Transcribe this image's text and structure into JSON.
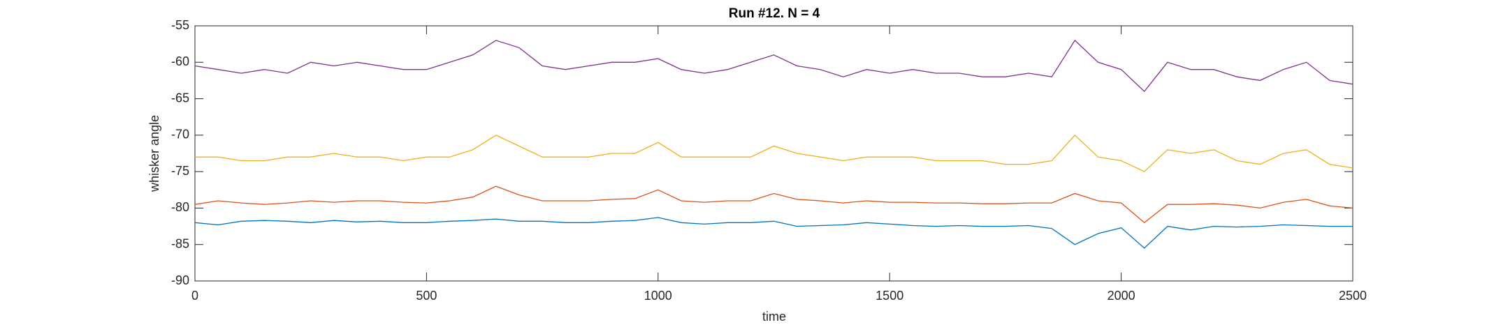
{
  "chart_data": {
    "type": "line",
    "title": "Run #12. N = 4",
    "x_label": "time",
    "y_label": "whisker angle",
    "x": [
      0,
      50,
      100,
      150,
      200,
      250,
      300,
      350,
      400,
      450,
      500,
      550,
      600,
      650,
      700,
      750,
      800,
      850,
      900,
      950,
      1000,
      1050,
      1100,
      1150,
      1200,
      1250,
      1300,
      1350,
      1400,
      1450,
      1500,
      1550,
      1600,
      1650,
      1700,
      1750,
      1800,
      1850,
      1900,
      1950,
      2000,
      2050,
      2100,
      2150,
      2200,
      2250,
      2300,
      2350,
      2400,
      2450,
      2500
    ],
    "series": [
      {
        "color": "#0072BD",
        "values": [
          -82,
          -82.3,
          -81.8,
          -81.7,
          -81.8,
          -82,
          -81.7,
          -81.9,
          -81.8,
          -82,
          -82,
          -81.8,
          -81.7,
          -81.5,
          -81.8,
          -81.8,
          -82,
          -82,
          -81.8,
          -81.7,
          -81.3,
          -82,
          -82.2,
          -82,
          -82,
          -81.8,
          -82.5,
          -82.4,
          -82.3,
          -82,
          -82.2,
          -82.4,
          -82.5,
          -82.4,
          -82.5,
          -82.5,
          -82.4,
          -82.8,
          -85,
          -83.5,
          -82.7,
          -85.5,
          -82.5,
          -83,
          -82.5,
          -82.6,
          -82.5,
          -82.3,
          -82.4,
          -82.5,
          -82.5
        ]
      },
      {
        "color": "#D95319",
        "values": [
          -79.5,
          -79,
          -79.3,
          -79.5,
          -79.3,
          -79,
          -79.2,
          -79,
          -79,
          -79.2,
          -79.3,
          -79,
          -78.5,
          -77,
          -78.2,
          -79,
          -79,
          -79,
          -78.8,
          -78.7,
          -77.5,
          -79,
          -79.2,
          -79,
          -79,
          -78,
          -78.8,
          -79,
          -79.3,
          -79,
          -79.2,
          -79.2,
          -79.3,
          -79.3,
          -79.4,
          -79.4,
          -79.3,
          -79.3,
          -78,
          -79,
          -79.3,
          -82,
          -79.5,
          -79.5,
          -79.4,
          -79.6,
          -80,
          -79.2,
          -78.8,
          -79.7,
          -80
        ]
      },
      {
        "color": "#EDB120",
        "values": [
          -73,
          -73,
          -73.5,
          -73.5,
          -73,
          -73,
          -72.5,
          -73,
          -73,
          -73.5,
          -73,
          -73,
          -72,
          -70,
          -71.5,
          -73,
          -73,
          -73,
          -72.5,
          -72.5,
          -71,
          -73,
          -73,
          -73,
          -73,
          -71.5,
          -72.5,
          -73,
          -73.5,
          -73,
          -73,
          -73,
          -73.5,
          -73.5,
          -73.5,
          -74,
          -74,
          -73.5,
          -70,
          -73,
          -73.5,
          -75,
          -72,
          -72.5,
          -72,
          -73.5,
          -74,
          -72.5,
          -72,
          -74,
          -74.5
        ]
      },
      {
        "color": "#7E2F8E",
        "values": [
          -60.5,
          -61,
          -61.5,
          -61,
          -61.5,
          -60,
          -60.5,
          -60,
          -60.5,
          -61,
          -61,
          -60,
          -59,
          -57,
          -58,
          -60.5,
          -61,
          -60.5,
          -60,
          -60,
          -59.5,
          -61,
          -61.5,
          -61,
          -60,
          -59,
          -60.5,
          -61,
          -62,
          -61,
          -61.5,
          -61,
          -61.5,
          -61.5,
          -62,
          -62,
          -61.5,
          -62,
          -57,
          -60,
          -61,
          -64,
          -60,
          -61,
          -61,
          -62,
          -62.5,
          -61,
          -60,
          -62.5,
          -63
        ]
      }
    ],
    "xlim": [
      0,
      2500
    ],
    "xticks": [
      0,
      500,
      1000,
      1500,
      2000,
      2500
    ],
    "ylim": [
      -90,
      -55
    ],
    "yticks": [
      -90,
      -85,
      -80,
      -75,
      -70,
      -65,
      -60,
      -55
    ]
  }
}
